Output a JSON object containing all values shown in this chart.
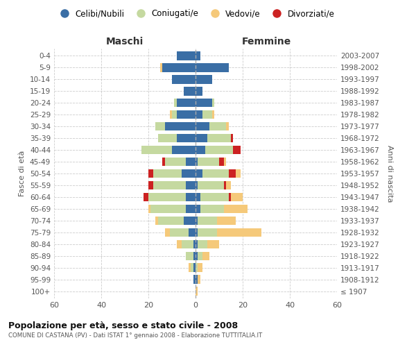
{
  "age_groups": [
    "100+",
    "95-99",
    "90-94",
    "85-89",
    "80-84",
    "75-79",
    "70-74",
    "65-69",
    "60-64",
    "55-59",
    "50-54",
    "45-49",
    "40-44",
    "35-39",
    "30-34",
    "25-29",
    "20-24",
    "15-19",
    "10-14",
    "5-9",
    "0-4"
  ],
  "birth_years": [
    "≤ 1907",
    "1908-1912",
    "1913-1917",
    "1918-1922",
    "1923-1927",
    "1928-1932",
    "1933-1937",
    "1938-1942",
    "1943-1947",
    "1948-1952",
    "1953-1957",
    "1958-1962",
    "1963-1967",
    "1968-1972",
    "1973-1977",
    "1978-1982",
    "1983-1987",
    "1988-1992",
    "1993-1997",
    "1998-2002",
    "2003-2007"
  ],
  "male_celibi": [
    0,
    1,
    1,
    1,
    1,
    3,
    5,
    4,
    4,
    4,
    6,
    4,
    10,
    8,
    13,
    8,
    8,
    5,
    10,
    14,
    8
  ],
  "male_coniugati": [
    0,
    0,
    1,
    3,
    5,
    8,
    11,
    15,
    16,
    14,
    12,
    9,
    13,
    8,
    4,
    2,
    1,
    0,
    0,
    0,
    0
  ],
  "male_vedovi": [
    0,
    0,
    1,
    0,
    2,
    2,
    1,
    1,
    0,
    0,
    0,
    0,
    0,
    0,
    0,
    1,
    0,
    0,
    0,
    1,
    0
  ],
  "male_divorziati": [
    0,
    0,
    0,
    0,
    0,
    0,
    0,
    0,
    2,
    2,
    2,
    1,
    0,
    0,
    0,
    0,
    0,
    0,
    0,
    0,
    0
  ],
  "female_nubili": [
    0,
    1,
    0,
    1,
    1,
    1,
    1,
    2,
    2,
    1,
    3,
    1,
    4,
    5,
    6,
    3,
    7,
    3,
    7,
    14,
    2
  ],
  "female_coniugate": [
    0,
    0,
    1,
    2,
    4,
    8,
    8,
    10,
    12,
    11,
    11,
    9,
    12,
    10,
    7,
    4,
    1,
    0,
    0,
    0,
    0
  ],
  "female_vedove": [
    1,
    1,
    2,
    3,
    5,
    19,
    8,
    10,
    5,
    2,
    2,
    1,
    0,
    0,
    1,
    1,
    0,
    0,
    0,
    0,
    0
  ],
  "female_divorziate": [
    0,
    0,
    0,
    0,
    0,
    0,
    0,
    0,
    1,
    1,
    3,
    2,
    3,
    1,
    0,
    0,
    0,
    0,
    0,
    0,
    0
  ],
  "color_celibi": "#3a6ea5",
  "color_coniugati": "#c5d9a0",
  "color_vedovi": "#f5c97a",
  "color_divorziati": "#cc2222",
  "xlim": 60,
  "title": "Popolazione per età, sesso e stato civile - 2008",
  "subtitle": "COMUNE DI CASTANA (PV) - Dati ISTAT 1° gennaio 2008 - Elaborazione TUTTITALIA.IT",
  "ylabel_left": "Fasce di età",
  "ylabel_right": "Anni di nascita",
  "label_maschi": "Maschi",
  "label_femmine": "Femmine",
  "legend_labels": [
    "Celibi/Nubili",
    "Coniugati/e",
    "Vedovi/e",
    "Divorziati/e"
  ],
  "bg_color": "#ffffff",
  "grid_color": "#cccccc",
  "text_color": "#555555",
  "title_color": "#111111"
}
